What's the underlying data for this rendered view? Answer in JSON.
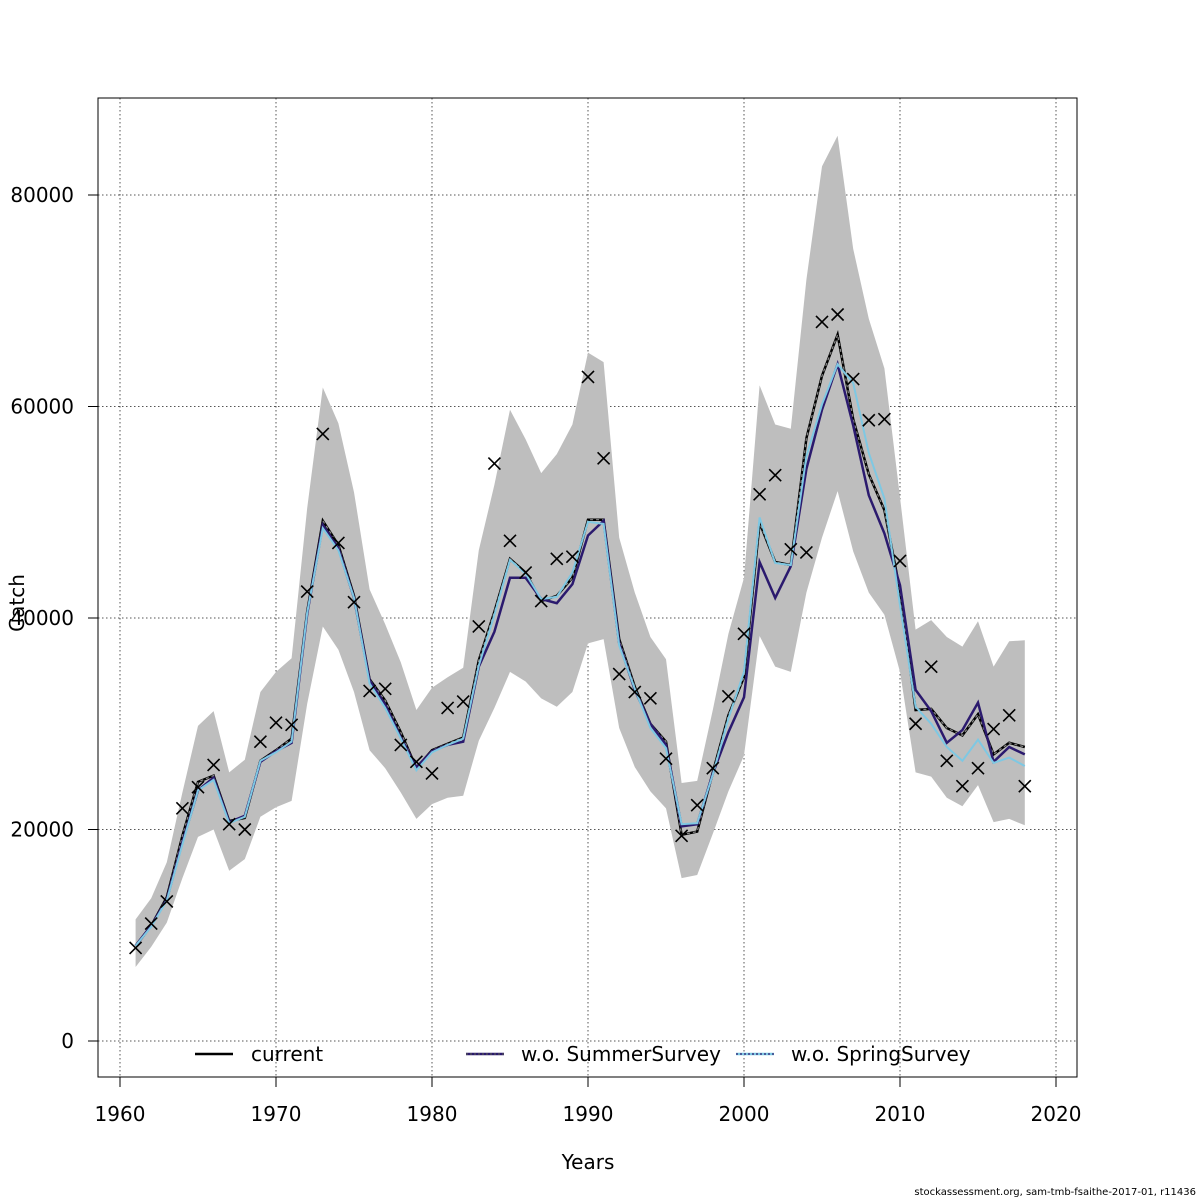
{
  "chart_data": {
    "type": "line",
    "xlabel": "Years",
    "ylabel": "Catch",
    "xlim": [
      1960,
      2020
    ],
    "ylim": [
      0,
      85000
    ],
    "x_ticks": [
      1960,
      1970,
      1980,
      1990,
      2000,
      2010,
      2020
    ],
    "y_ticks": [
      0,
      20000,
      40000,
      60000,
      80000
    ],
    "grid": true,
    "legend_position": "bottom",
    "years": [
      1961,
      1962,
      1963,
      1964,
      1965,
      1966,
      1967,
      1968,
      1969,
      1970,
      1971,
      1972,
      1973,
      1974,
      1975,
      1976,
      1977,
      1978,
      1979,
      1980,
      1981,
      1982,
      1983,
      1984,
      1985,
      1986,
      1987,
      1988,
      1989,
      1990,
      1991,
      1992,
      1993,
      1994,
      1995,
      1996,
      1997,
      1998,
      1999,
      2000,
      2001,
      2002,
      2003,
      2004,
      2005,
      2006,
      2007,
      2008,
      2009,
      2010,
      2011,
      2012,
      2013,
      2014,
      2015,
      2016,
      2017,
      2018
    ],
    "confidence_band": {
      "lower": [
        7000,
        8900,
        11200,
        15400,
        19300,
        20000,
        16100,
        17200,
        21200,
        22100,
        22700,
        31900,
        39200,
        37000,
        33000,
        27500,
        25800,
        23500,
        21000,
        22400,
        23000,
        23200,
        28400,
        31500,
        34900,
        34000,
        32400,
        31600,
        33000,
        37600,
        38000,
        29600,
        25900,
        23600,
        22000,
        15400,
        15700,
        19600,
        23600,
        27000,
        38300,
        35400,
        34900,
        42400,
        47600,
        52000,
        46300,
        42400,
        40300,
        34900,
        25400,
        25000,
        23000,
        22200,
        24200,
        20700,
        21000,
        20400
      ],
      "upper": [
        11500,
        13500,
        16900,
        23500,
        29800,
        31200,
        25400,
        26600,
        33000,
        34900,
        36200,
        50400,
        61800,
        58400,
        51900,
        42700,
        39400,
        35800,
        31300,
        33400,
        34400,
        35300,
        46400,
        52600,
        59700,
        56900,
        53700,
        55500,
        58300,
        65100,
        64200,
        47600,
        42400,
        38200,
        36100,
        24400,
        24600,
        31300,
        38500,
        43800,
        62000,
        58300,
        57900,
        72000,
        82700,
        85600,
        74900,
        68300,
        63600,
        51400,
        38900,
        39800,
        38200,
        37300,
        39700,
        35400,
        37800,
        37900
      ]
    },
    "observations": [
      8800,
      11100,
      13200,
      22000,
      24000,
      26100,
      20500,
      20000,
      28300,
      30100,
      29900,
      42500,
      57400,
      47100,
      41500,
      33100,
      33300,
      28000,
      26400,
      25300,
      31500,
      32100,
      39200,
      54600,
      47300,
      44300,
      41600,
      45600,
      45800,
      62800,
      55100,
      34700,
      33000,
      32400,
      26700,
      19400,
      22300,
      25800,
      32600,
      38500,
      51700,
      53500,
      46500,
      46200,
      68000,
      68700,
      62600,
      58700,
      58800,
      45400,
      30000,
      35400,
      26500,
      24100,
      25800,
      29500,
      30800,
      24100
    ],
    "series": [
      {
        "name": "current",
        "color": "#000000",
        "values": [
          9000,
          10900,
          13600,
          19400,
          24500,
          25100,
          20800,
          21100,
          26500,
          27500,
          28600,
          40600,
          49200,
          46900,
          42100,
          34200,
          32200,
          29200,
          25800,
          27500,
          28100,
          28700,
          36000,
          40600,
          45600,
          44300,
          41600,
          42100,
          43800,
          49300,
          49300,
          38000,
          33500,
          30000,
          28300,
          19500,
          19800,
          25400,
          30800,
          34400,
          49000,
          45300,
          45000,
          57000,
          62900,
          66800,
          58800,
          53600,
          50200,
          42600,
          31300,
          31400,
          29600,
          28900,
          30900,
          27100,
          28200,
          27800
        ]
      },
      {
        "name": "w.o. SummerSurvey",
        "color": "#2b1a6e",
        "values": [
          9000,
          10900,
          13400,
          18800,
          23700,
          24900,
          20700,
          21300,
          26400,
          27400,
          28200,
          40400,
          48800,
          46600,
          41900,
          34100,
          31800,
          28700,
          25900,
          27400,
          28000,
          28300,
          35400,
          38700,
          43800,
          43800,
          41800,
          41400,
          43200,
          47800,
          49200,
          37600,
          33200,
          30000,
          28000,
          20300,
          20500,
          25300,
          29200,
          32500,
          45300,
          41900,
          44900,
          54100,
          59700,
          64000,
          58200,
          51600,
          48000,
          43100,
          33200,
          31200,
          28200,
          29400,
          32000,
          26400,
          27800,
          27100
        ]
      },
      {
        "name": "w.o. SpringSurvey",
        "color": "#7ec8e3",
        "values": [
          9000,
          10800,
          13300,
          18600,
          23700,
          24700,
          20600,
          21200,
          26500,
          27300,
          28300,
          40500,
          48500,
          46400,
          41900,
          33800,
          31500,
          28600,
          25600,
          27300,
          28000,
          28600,
          35500,
          40300,
          45500,
          44200,
          41800,
          42000,
          44300,
          49100,
          48900,
          37400,
          33300,
          29600,
          27700,
          20500,
          20600,
          25200,
          30500,
          34900,
          49500,
          45200,
          45000,
          55300,
          60200,
          64000,
          62200,
          55600,
          51300,
          41200,
          31600,
          30000,
          27800,
          26500,
          28500,
          26300,
          26800,
          26000
        ]
      }
    ],
    "legend": [
      "current",
      "w.o. SummerSurvey",
      "w.o. SpringSurvey"
    ]
  },
  "footer": "stockassessment.org, sam-tmb-fsaithe-2017-01, r11436"
}
